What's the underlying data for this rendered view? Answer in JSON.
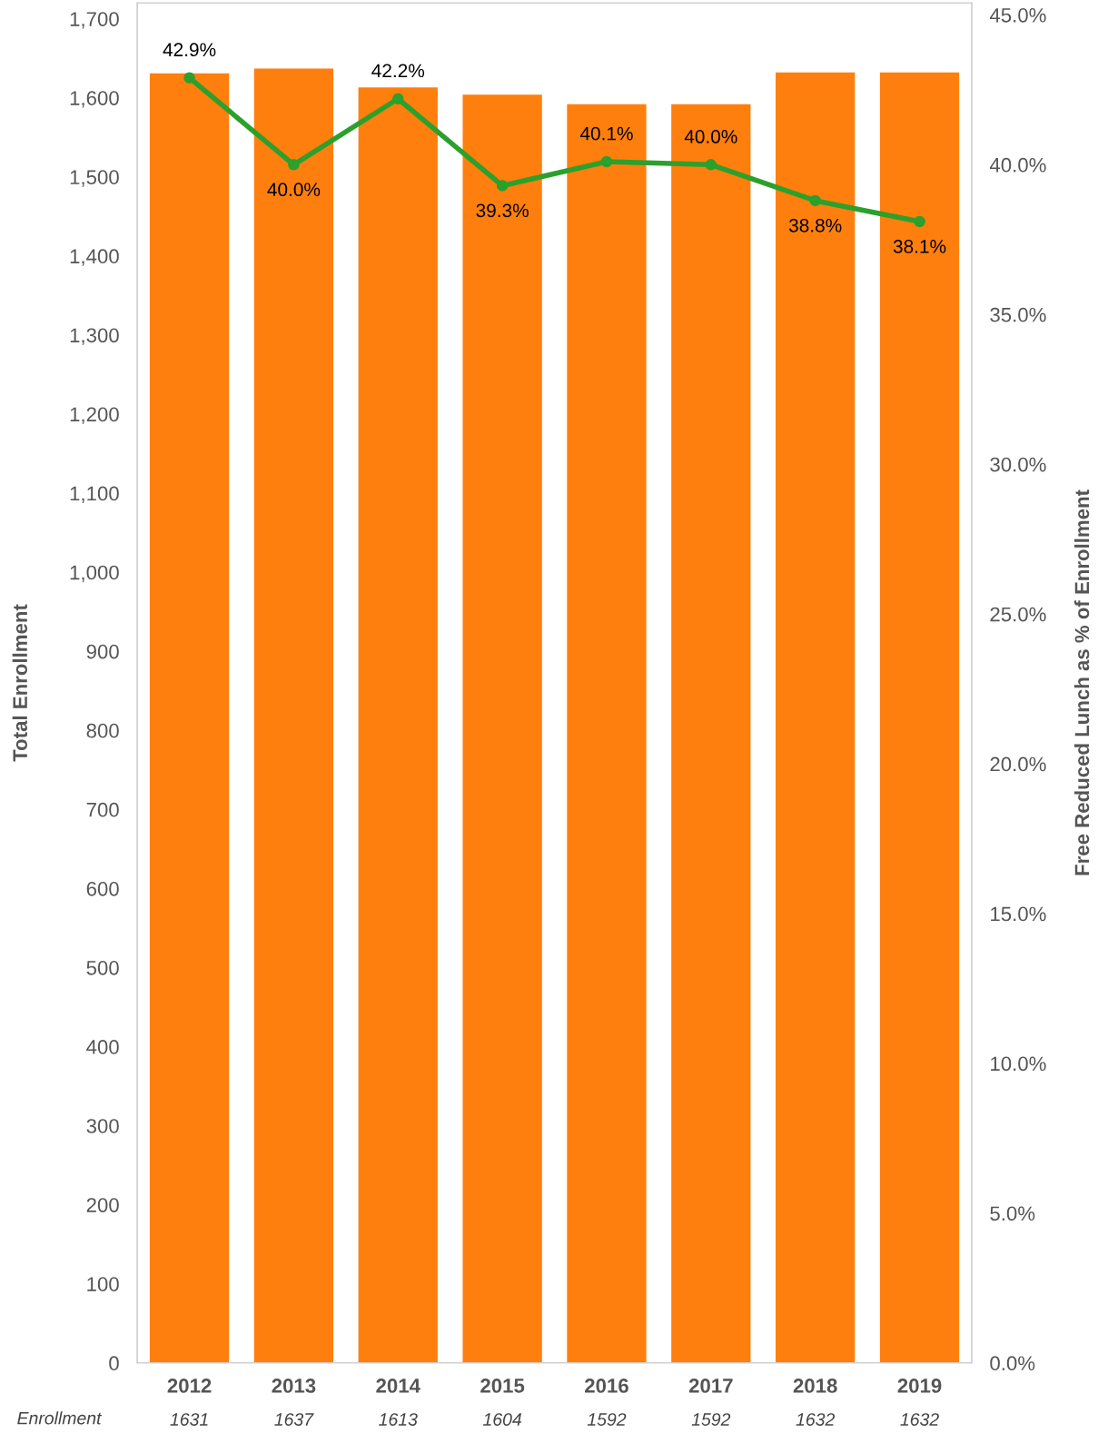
{
  "chart_data": {
    "type": "bar",
    "categories": [
      "2012",
      "2013",
      "2014",
      "2015",
      "2016",
      "2017",
      "2018",
      "2019"
    ],
    "series": [
      {
        "name": "Enrollment",
        "color": "#ff7f0e",
        "values": [
          1631,
          1637,
          1613,
          1604,
          1592,
          1592,
          1632,
          1632
        ],
        "value_labels": [
          "1631",
          "1637",
          "1613",
          "1604",
          "1592",
          "1592",
          "1632",
          "1632"
        ]
      },
      {
        "type": "line",
        "axis": "y2",
        "color": "#2ca02c",
        "marker": "circle",
        "line_style": "solid",
        "values": [
          42.9,
          40.0,
          42.2,
          39.3,
          40.1,
          40.0,
          38.8,
          38.1
        ],
        "value_labels": [
          "42.9%",
          "40.0%",
          "42.2%",
          "39.3%",
          "40.1%",
          "40.0%",
          "38.8%",
          "38.1%"
        ]
      }
    ],
    "ylabel": "Total Enrollment",
    "y2label": "Free Reduced Lunch as % of Enrollment",
    "ylim": [
      0,
      1720
    ],
    "yticks": [
      {
        "value": 0,
        "label": "0"
      },
      {
        "value": 100,
        "label": "100"
      },
      {
        "value": 200,
        "label": "200"
      },
      {
        "value": 300,
        "label": "300"
      },
      {
        "value": 400,
        "label": "400"
      },
      {
        "value": 500,
        "label": "500"
      },
      {
        "value": 600,
        "label": "600"
      },
      {
        "value": 700,
        "label": "700"
      },
      {
        "value": 800,
        "label": "800"
      },
      {
        "value": 900,
        "label": "900"
      },
      {
        "value": 1000,
        "label": "1,000"
      },
      {
        "value": 1100,
        "label": "1,100"
      },
      {
        "value": 1200,
        "label": "1,200"
      },
      {
        "value": 1300,
        "label": "1,300"
      },
      {
        "value": 1400,
        "label": "1,400"
      },
      {
        "value": 1500,
        "label": "1,500"
      },
      {
        "value": 1600,
        "label": "1,600"
      },
      {
        "value": 1700,
        "label": "1,700"
      }
    ],
    "y2lim": [
      0,
      45.4
    ],
    "y2ticks": [
      {
        "value": 0,
        "label": "0.0%"
      },
      {
        "value": 5,
        "label": "5.0%"
      },
      {
        "value": 10,
        "label": "10.0%"
      },
      {
        "value": 15,
        "label": "15.0%"
      },
      {
        "value": 20,
        "label": "20.0%"
      },
      {
        "value": 25,
        "label": "25.0%"
      },
      {
        "value": 30,
        "label": "30.0%"
      },
      {
        "value": 35,
        "label": "35.0%"
      },
      {
        "value": 40,
        "label": "40.0%"
      },
      {
        "value": 45,
        "label": "45.0%"
      }
    ],
    "grid": false,
    "legend": false
  }
}
